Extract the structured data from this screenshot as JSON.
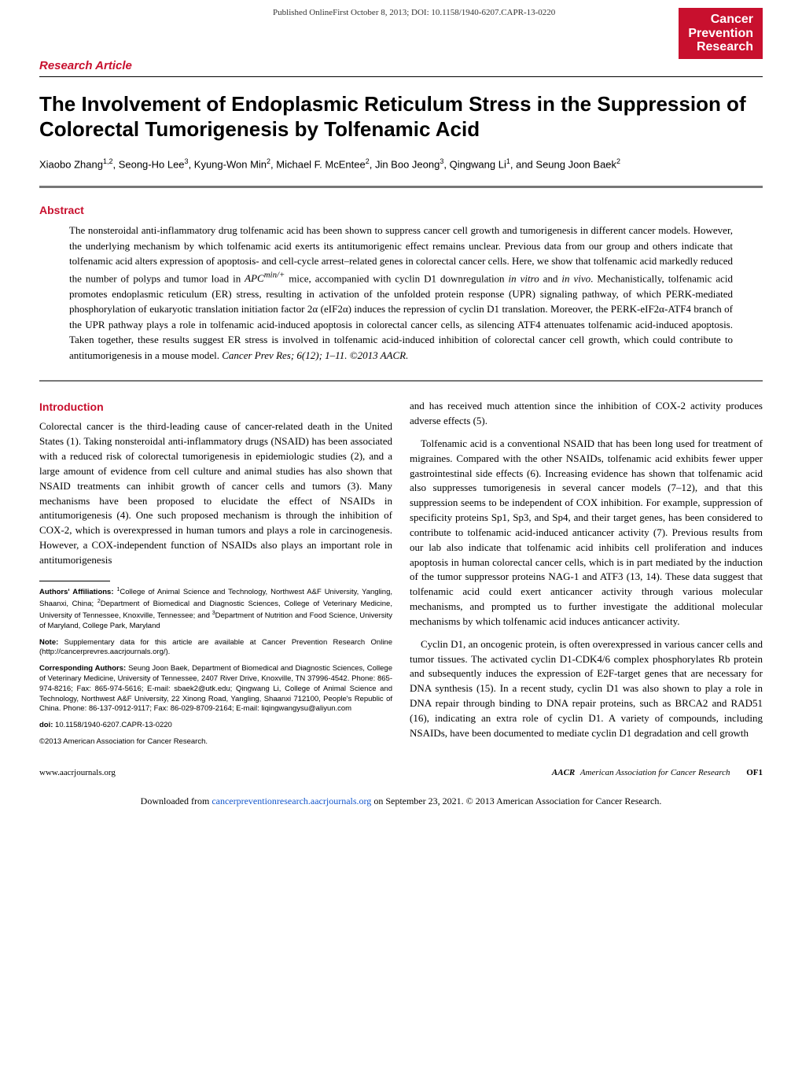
{
  "header": {
    "pub_line": "Published OnlineFirst October 8, 2013; DOI: 10.1158/1940-6207.CAPR-13-0220",
    "journal_l1": "Cancer",
    "journal_l2": "Prevention",
    "journal_l3": "Research"
  },
  "article_type": "Research Article",
  "title": "The Involvement of Endoplasmic Reticulum Stress in the Suppression of Colorectal Tumorigenesis by Tolfenamic Acid",
  "authors_html": "Xiaobo Zhang<sup>1,2</sup>, Seong-Ho Lee<sup>3</sup>, Kyung-Won Min<sup>2</sup>, Michael F. McEntee<sup>2</sup>, Jin Boo Jeong<sup>3</sup>, Qingwang Li<sup>1</sup>, and Seung Joon Baek<sup>2</sup>",
  "abstract": {
    "heading": "Abstract",
    "text_html": "The nonsteroidal anti-inflammatory drug tolfenamic acid has been shown to suppress cancer cell growth and tumorigenesis in different cancer models. However, the underlying mechanism by which tolfenamic acid exerts its antitumorigenic effect remains unclear. Previous data from our group and others indicate that tolfenamic acid alters expression of apoptosis- and cell-cycle arrest–related genes in colorectal cancer cells. Here, we show that tolfenamic acid markedly reduced the number of polyps and tumor load in <i>APC<sup>min/+</sup></i> mice, accompanied with cyclin D1 downregulation <i>in vitro</i> and <i>in vivo</i>. Mechanistically, tolfenamic acid promotes endoplasmic reticulum (ER) stress, resulting in activation of the unfolded protein response (UPR) signaling pathway, of which PERK-mediated phosphorylation of eukaryotic translation initiation factor 2α (eIF2α) induces the repression of cyclin D1 translation. Moreover, the PERK-eIF2α-ATF4 branch of the UPR pathway plays a role in tolfenamic acid-induced apoptosis in colorectal cancer cells, as silencing ATF4 attenuates tolfenamic acid-induced apoptosis. Taken together, these results suggest ER stress is involved in tolfenamic acid-induced inhibition of colorectal cancer cell growth, which could contribute to antitumorigenesis in a mouse model. <i>Cancer Prev Res; 6(12); 1–11. ©2013 AACR.</i>"
  },
  "intro": {
    "heading": "Introduction",
    "p1": "Colorectal cancer is the third-leading cause of cancer-related death in the United States (1). Taking nonsteroidal anti-inflammatory drugs (NSAID) has been associated with a reduced risk of colorectal tumorigenesis in epidemiologic studies (2), and a large amount of evidence from cell culture and animal studies has also shown that NSAID treatments can inhibit growth of cancer cells and tumors (3). Many mechanisms have been proposed to elucidate the effect of NSAIDs in antitumorigenesis (4). One such proposed mechanism is through the inhibition of COX-2, which is overexpressed in human tumors and plays a role in carcinogenesis. However, a COX-independent function of NSAIDs also plays an important role in antitumorigenesis",
    "p2": "and has received much attention since the inhibition of COX-2 activity produces adverse effects (5).",
    "p3": "Tolfenamic acid is a conventional NSAID that has been long used for treatment of migraines. Compared with the other NSAIDs, tolfenamic acid exhibits fewer upper gastrointestinal side effects (6). Increasing evidence has shown that tolfenamic acid also suppresses tumorigenesis in several cancer models (7–12), and that this suppression seems to be independent of COX inhibition. For example, suppression of specificity proteins Sp1, Sp3, and Sp4, and their target genes, has been considered to contribute to tolfenamic acid-induced anticancer activity (7). Previous results from our lab also indicate that tolfenamic acid inhibits cell proliferation and induces apoptosis in human colorectal cancer cells, which is in part mediated by the induction of the tumor suppressor proteins NAG-1 and ATF3 (13, 14). These data suggest that tolfenamic acid could exert anticancer activity through various molecular mechanisms, and prompted us to further investigate the additional molecular mechanisms by which tolfenamic acid induces anticancer activity.",
    "p4": "Cyclin D1, an oncogenic protein, is often overexpressed in various cancer cells and tumor tissues. The activated cyclin D1-CDK4/6 complex phosphorylates Rb protein and subsequently induces the expression of E2F-target genes that are necessary for DNA synthesis (15). In a recent study, cyclin D1 was also shown to play a role in DNA repair through binding to DNA repair proteins, such as BRCA2 and RAD51 (16), indicating an extra role of cyclin D1. A variety of compounds, including NSAIDs, have been documented to mediate cyclin D1 degradation and cell growth"
  },
  "footnotes": {
    "affiliations_html": "<b>Authors' Affiliations:</b> <sup>1</sup>College of Animal Science and Technology, Northwest A&F University, Yangling, Shaanxi, China; <sup>2</sup>Department of Biomedical and Diagnostic Sciences, College of Veterinary Medicine, University of Tennessee, Knoxville, Tennessee; and <sup>3</sup>Department of Nutrition and Food Science, University of Maryland, College Park, Maryland",
    "note_html": "<b>Note:</b> Supplementary data for this article are available at Cancer Prevention Research Online (http://cancerprevres.aacrjournals.org/).",
    "corresponding_html": "<b>Corresponding Authors:</b> Seung Joon Baek, Department of Biomedical and Diagnostic Sciences, College of Veterinary Medicine, University of Tennessee, 2407 River Drive, Knoxville, TN 37996-4542. Phone: 865-974-8216; Fax: 865-974-5616; E-mail: sbaek2@utk.edu; Qingwang Li, College of Animal Science and Technology, Northwest A&F University, 22 Xinong Road, Yangling, Shaanxi 712100, People's Republic of China. Phone: 86-137-0912-9117; Fax: 86-029-8709-2164; E-mail: liqingwangysu@aliyun.com",
    "doi_html": "<b>doi:</b> 10.1158/1940-6207.CAPR-13-0220",
    "copyright": "©2013 American Association for Cancer Research."
  },
  "footer": {
    "left": "www.aacrjournals.org",
    "logo": "AACR",
    "right_text": "American Association for Cancer Research",
    "page": "OF1"
  },
  "download": {
    "pre": "Downloaded from ",
    "link": "cancerpreventionresearch.aacrjournals.org",
    "post": " on September 23, 2021. © 2013 American Association for Cancer Research."
  }
}
